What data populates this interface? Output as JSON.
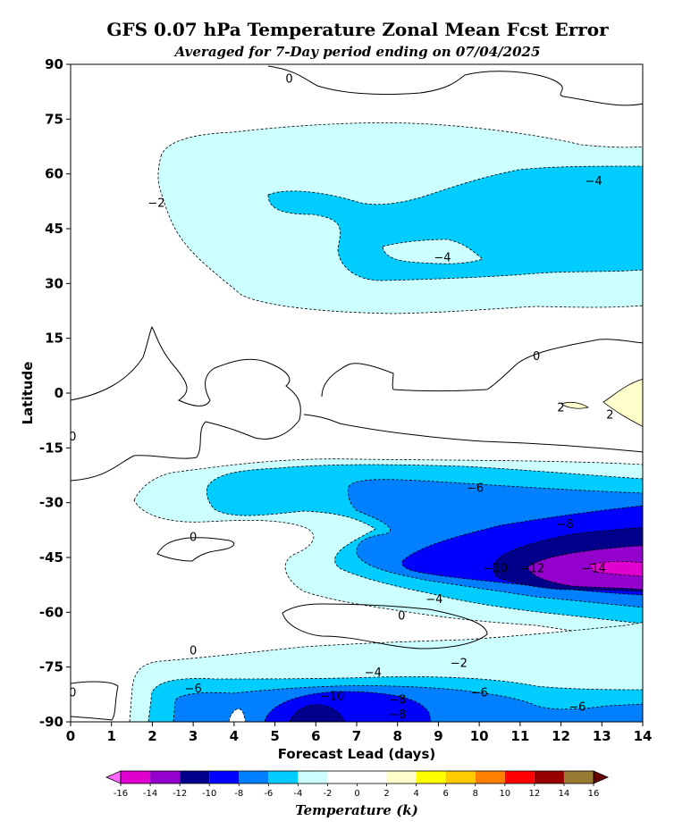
{
  "chart_data": {
    "type": "contour",
    "title": "GFS 0.07 hPa Temperature Zonal Mean Fcst Error",
    "subtitle": "Averaged for 7-Day period ending on 07/04/2025",
    "xlabel": "Forecast Lead (days)",
    "ylabel": "Latitude",
    "xlim": [
      0,
      14
    ],
    "ylim": [
      -90,
      90
    ],
    "xticks": [
      "0",
      "1",
      "2",
      "3",
      "4",
      "5",
      "6",
      "7",
      "8",
      "9",
      "10",
      "11",
      "12",
      "13",
      "14"
    ],
    "yticks": [
      "90",
      "75",
      "60",
      "45",
      "30",
      "15",
      "0",
      "-15",
      "-30",
      "-45",
      "-60",
      "-75",
      "-90"
    ],
    "colorbar": {
      "label": "Temperature (k)",
      "ticks": [
        "-16",
        "-14",
        "-12",
        "-10",
        "-8",
        "-6",
        "-4",
        "-2",
        "0",
        "2",
        "4",
        "6",
        "8",
        "10",
        "12",
        "14",
        "16"
      ],
      "colors": [
        "#ff66ff",
        "#e000d0",
        "#9400cc",
        "#00008b",
        "#0000ff",
        "#0080ff",
        "#00ccff",
        "#ccffff",
        "#ffffff",
        "#ffffff",
        "#ffffcc",
        "#ffff00",
        "#ffcc00",
        "#ff8000",
        "#ff0000",
        "#990000",
        "#997a33",
        "#660000"
      ]
    },
    "contour_labels": [
      {
        "text": "0",
        "x": 5.35,
        "y": 86
      },
      {
        "text": "0",
        "x": 11.4,
        "y": 10
      },
      {
        "text": "0",
        "x": 3.0,
        "y": -39.5
      },
      {
        "text": "0",
        "x": 8.1,
        "y": -61
      },
      {
        "text": "0",
        "x": 3.0,
        "y": -70.5
      },
      {
        "text": "0",
        "x": 0.05,
        "y": -12
      },
      {
        "text": "0",
        "x": 0.05,
        "y": -82
      },
      {
        "text": "−2",
        "x": 2.1,
        "y": 52
      },
      {
        "text": "−2",
        "x": 9.5,
        "y": -74
      },
      {
        "text": "2",
        "x": 12.0,
        "y": -4
      },
      {
        "text": "2",
        "x": 13.2,
        "y": -6
      },
      {
        "text": "−4",
        "x": 9.1,
        "y": 37
      },
      {
        "text": "−4",
        "x": 12.8,
        "y": 58
      },
      {
        "text": "−4",
        "x": 8.9,
        "y": -56.5
      },
      {
        "text": "−4",
        "x": 7.4,
        "y": -76.5
      },
      {
        "text": "−6",
        "x": 9.9,
        "y": -26
      },
      {
        "text": "−6",
        "x": 10.0,
        "y": -82
      },
      {
        "text": "−6",
        "x": 3.0,
        "y": -81
      },
      {
        "text": "−6",
        "x": 12.4,
        "y": -86
      },
      {
        "text": "−8",
        "x": 12.1,
        "y": -36
      },
      {
        "text": "−8",
        "x": 8.0,
        "y": -84
      },
      {
        "text": "−8",
        "x": 8.0,
        "y": -88
      },
      {
        "text": "−10",
        "x": 10.4,
        "y": -48
      },
      {
        "text": "−10",
        "x": 6.4,
        "y": -83
      },
      {
        "text": "−12",
        "x": 11.3,
        "y": -48
      },
      {
        "text": "−14",
        "x": 12.8,
        "y": -48
      }
    ]
  }
}
